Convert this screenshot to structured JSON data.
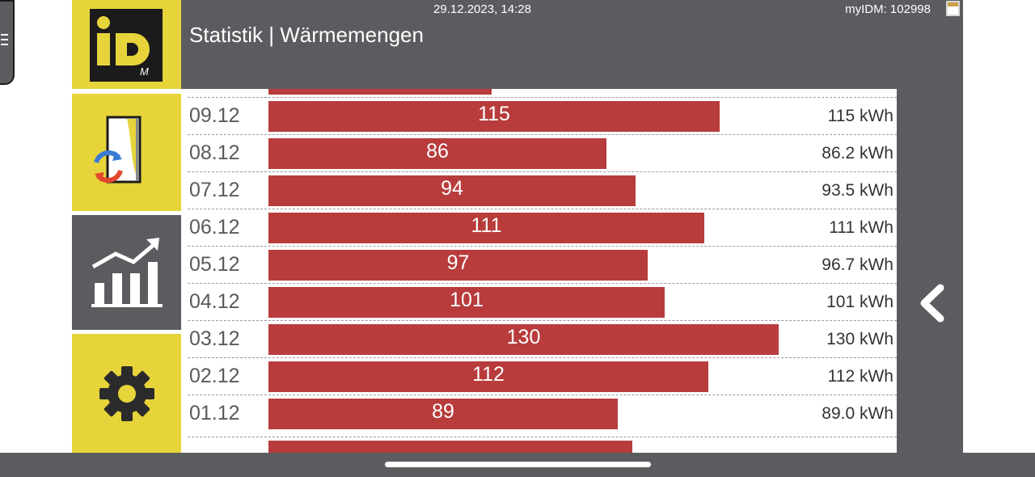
{
  "header": {
    "datetime": "29.12.2023, 14:28",
    "myidm": "myIDM: 102998",
    "title": "Statistik | Wärmemengen",
    "calendar_icon": "calendar-icon"
  },
  "sidebar": {
    "logo_text": "iD",
    "logo_sub": "M",
    "items": [
      {
        "name": "heat-pump",
        "icon": "heatpump-icon",
        "active": false
      },
      {
        "name": "statistics",
        "icon": "statistics-chart-icon",
        "active": true
      },
      {
        "name": "settings",
        "icon": "gear-icon",
        "active": false
      }
    ]
  },
  "colors": {
    "bar": "#b83c3c",
    "header": "#5b5c5f",
    "accent_yellow": "#e6d43a"
  },
  "chart_data": {
    "type": "bar",
    "orientation": "horizontal",
    "unit": "kWh",
    "scale_max": 131,
    "rows": [
      {
        "date": "09.12",
        "label": "115",
        "value": 115,
        "value_text": "115 kWh"
      },
      {
        "date": "08.12",
        "label": "86",
        "value": 86.2,
        "value_text": "86.2 kWh"
      },
      {
        "date": "07.12",
        "label": "94",
        "value": 93.5,
        "value_text": "93.5 kWh"
      },
      {
        "date": "06.12",
        "label": "111",
        "value": 111,
        "value_text": "111 kWh"
      },
      {
        "date": "05.12",
        "label": "97",
        "value": 96.7,
        "value_text": "96.7 kWh"
      },
      {
        "date": "04.12",
        "label": "101",
        "value": 101,
        "value_text": "101 kWh"
      },
      {
        "date": "03.12",
        "label": "130",
        "value": 130,
        "value_text": "130 kWh"
      },
      {
        "date": "02.12",
        "label": "112",
        "value": 112,
        "value_text": "112 kWh"
      },
      {
        "date": "01.12",
        "label": "89",
        "value": 89,
        "value_text": "89.0 kWh"
      }
    ]
  },
  "right_panel": {
    "back_icon": "chevron-left-icon"
  }
}
